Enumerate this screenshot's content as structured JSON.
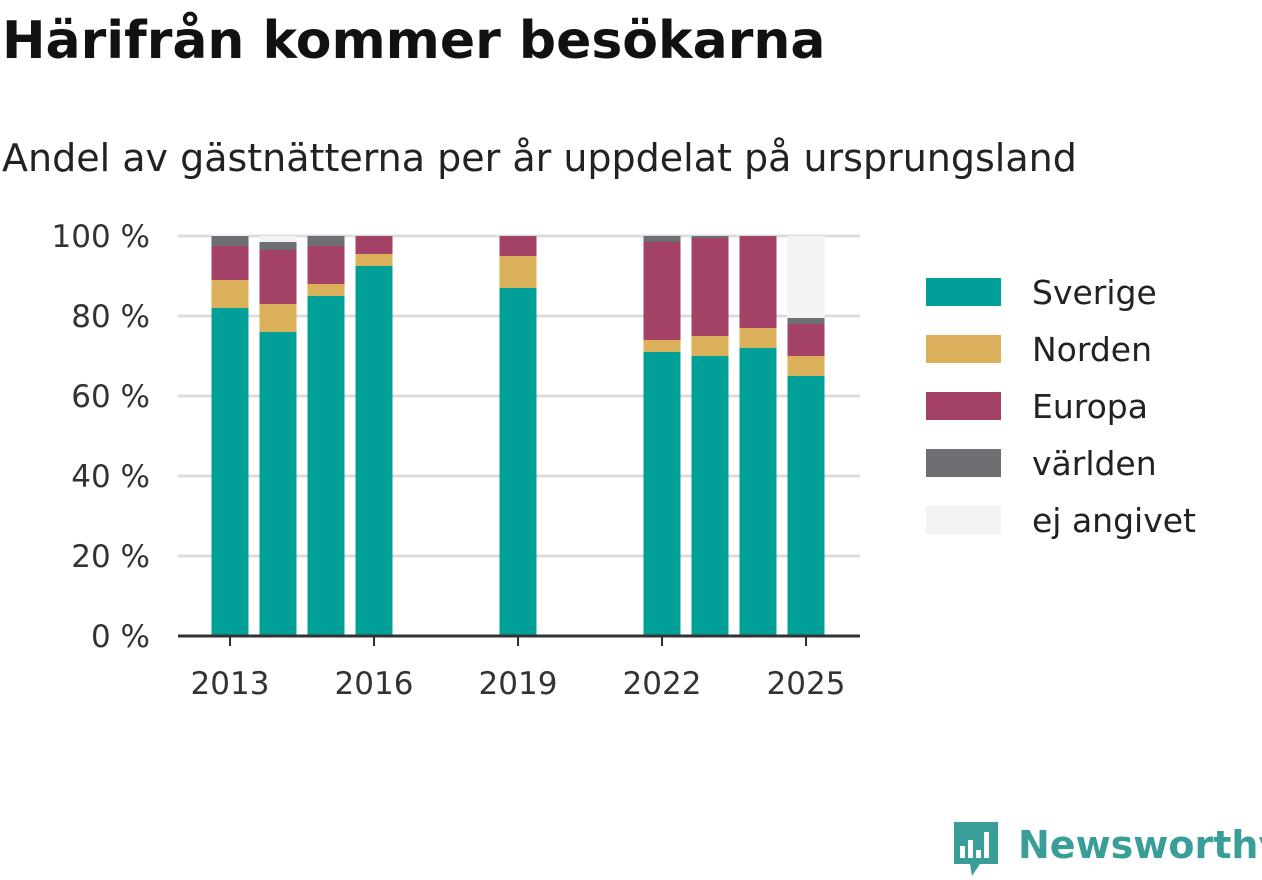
{
  "title": "Härifrån kommer besökarna",
  "subtitle": "Andel av gästnätterna per år uppdelat på ursprungsland",
  "brand": {
    "name": "Newsworthy",
    "icon": "bar-chart-speech-bubble-icon"
  },
  "chart_data": {
    "type": "bar",
    "stacked": true,
    "x": [
      2013,
      2014,
      2015,
      2016,
      2019,
      2022,
      2023,
      2024,
      2025
    ],
    "x_ticks": [
      "2013",
      "2016",
      "2019",
      "2022",
      "2025"
    ],
    "y_ticks": [
      "0 %",
      "20 %",
      "40 %",
      "60 %",
      "80 %",
      "100 %"
    ],
    "ylim": [
      0,
      100
    ],
    "grid": true,
    "legend_position": "right",
    "series": [
      {
        "name": "Sverige",
        "color": "#00a099",
        "values": [
          82,
          76,
          85,
          92.5,
          87,
          71,
          70,
          72,
          65
        ]
      },
      {
        "name": "Norden",
        "color": "#dbb05a",
        "values": [
          7,
          7,
          3,
          3,
          8,
          3,
          5,
          5,
          5
        ]
      },
      {
        "name": "Europa",
        "color": "#a34166",
        "values": [
          8.5,
          13.5,
          9.5,
          4.5,
          5,
          24.5,
          24.5,
          23,
          8
        ]
      },
      {
        "name": "världen",
        "color": "#6e6e75",
        "values": [
          2.5,
          2,
          2.5,
          0,
          0,
          1.5,
          0.5,
          0,
          1.5
        ]
      },
      {
        "name": "ej angivet",
        "color": "#f4f3f4",
        "values": [
          0.5,
          1.5,
          0,
          0,
          0,
          0,
          0,
          0,
          20.5
        ]
      }
    ]
  }
}
